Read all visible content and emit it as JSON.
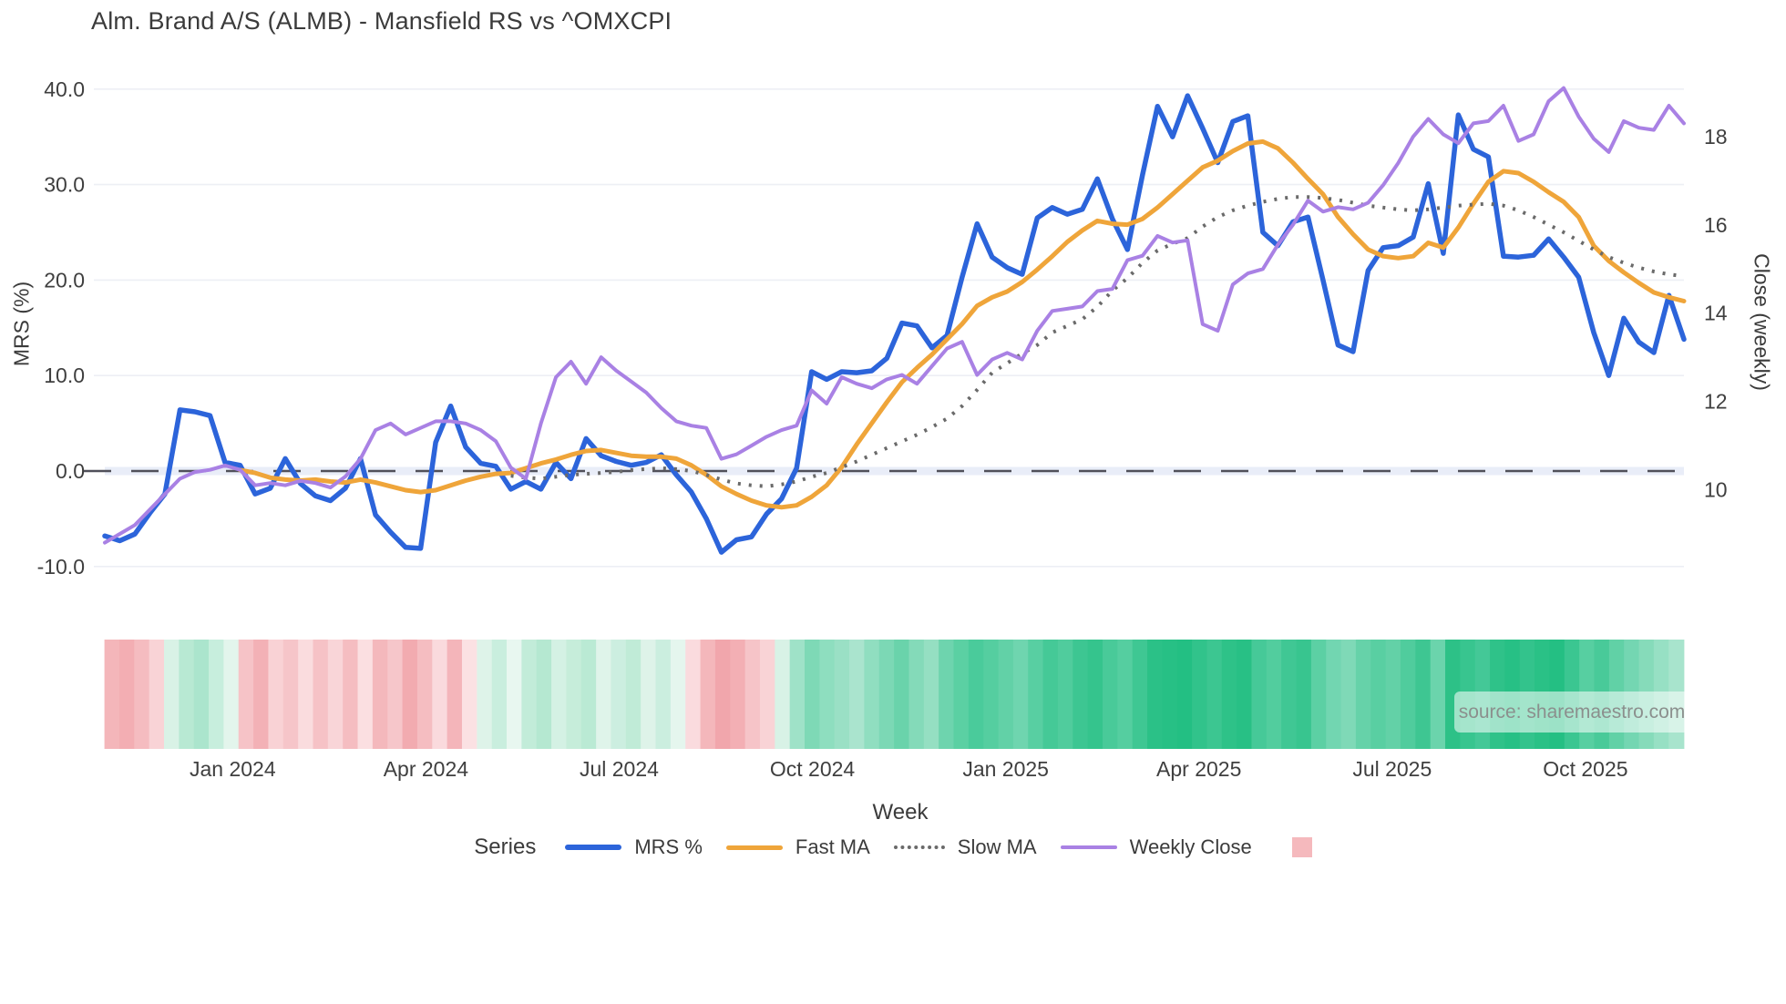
{
  "title": "Alm. Brand A/S (ALMB) - Mansfield RS vs ^OMXCPI",
  "source_text": "source: sharemaestro.com",
  "axes": {
    "left": {
      "title": "MRS (%)",
      "tick_labels": [
        "40.0",
        "30.0",
        "20.0",
        "10.0",
        "0.0",
        "-10.0"
      ],
      "tick_values": [
        40,
        30,
        20,
        10,
        0,
        -10
      ]
    },
    "right": {
      "title": "Close (weekly)",
      "tick_labels": [
        "18",
        "16",
        "14",
        "12",
        "10"
      ],
      "tick_values": [
        18,
        16,
        14,
        12,
        10
      ]
    },
    "x": {
      "title": "Week",
      "tick_labels": [
        "Jan 2024",
        "Apr 2024",
        "Jul 2024",
        "Oct 2024",
        "Jan 2025",
        "Apr 2025",
        "Jul 2025",
        "Oct 2025"
      ]
    }
  },
  "legend": {
    "title": "Series",
    "items": [
      {
        "label": "MRS %",
        "color": "#2c64da",
        "style": "solid",
        "width": 6
      },
      {
        "label": "Fast MA",
        "color": "#efa53a",
        "style": "solid",
        "width": 5
      },
      {
        "label": "Slow MA",
        "color": "#6a6a6a",
        "style": "dotted",
        "width": 4
      },
      {
        "label": "Weekly Close",
        "color": "#a981e4",
        "style": "solid",
        "width": 4
      }
    ],
    "heat_swatch_color": "#f5b9bd"
  },
  "colors": {
    "grid": "#edeff5",
    "zero_line": "#50505a",
    "zero_band": "#e9edf8",
    "tick_text": "#3f3f3f",
    "background": "#ffffff"
  },
  "chart_data": {
    "type": "line",
    "title": "Alm. Brand A/S (ALMB) - Mansfield RS vs ^OMXCPI",
    "xlabel": "Week",
    "ylabel_left": "MRS (%)",
    "ylabel_right": "Close (weekly)",
    "ylim_left": [
      -10,
      40
    ],
    "ylim_right": [
      10,
      18
    ],
    "n_points": 106,
    "x_range_note": "weekly points from Nov 2023 to Nov 2025",
    "x_tick_labels": [
      "Jan 2024",
      "Apr 2024",
      "Jul 2024",
      "Oct 2024",
      "Jan 2025",
      "Apr 2025",
      "Jul 2025",
      "Oct 2025"
    ],
    "x_tick_week_index": [
      8.5,
      21.35,
      34.2,
      47.05,
      59.9,
      72.75,
      85.6,
      98.45
    ],
    "grid": true,
    "legend_position": "bottom",
    "series": [
      {
        "name": "MRS %",
        "axis": "left",
        "color": "#2c64da",
        "style": "solid",
        "stroke_width": 5.5,
        "values": [
          -6.8,
          -7.3,
          -6.6,
          -4.4,
          -2.4,
          6.4,
          6.2,
          5.8,
          0.9,
          0.6,
          -2.4,
          -1.8,
          1.3,
          -1.3,
          -2.6,
          -3.1,
          -1.8,
          1.3,
          -4.6,
          -6.4,
          -8.0,
          -8.1,
          3.0,
          6.8,
          2.5,
          0.8,
          0.5,
          -1.9,
          -1.1,
          -1.9,
          0.9,
          -0.8,
          3.4,
          1.6,
          1.0,
          0.6,
          0.9,
          1.7,
          -0.4,
          -2.2,
          -5.0,
          -8.5,
          -7.2,
          -6.9,
          -4.5,
          -2.9,
          0.3,
          10.4,
          9.6,
          10.4,
          10.3,
          10.5,
          11.8,
          15.5,
          15.2,
          12.9,
          14.2,
          20.3,
          25.9,
          22.4,
          21.3,
          20.6,
          26.5,
          27.6,
          26.9,
          27.4,
          30.6,
          26.4,
          23.2,
          31.0,
          38.2,
          35.0,
          39.3,
          35.9,
          32.3,
          36.6,
          37.2,
          25.0,
          23.6,
          26.1,
          26.6,
          20.0,
          13.2,
          12.5,
          21.0,
          23.4,
          23.6,
          24.5,
          30.1,
          22.8,
          37.3,
          33.7,
          32.9,
          22.5,
          22.4,
          22.6,
          24.3,
          22.4,
          20.3,
          14.5,
          10.0,
          16.0,
          13.5,
          12.4,
          18.4,
          13.8
        ]
      },
      {
        "name": "Fast MA",
        "axis": "left",
        "color": "#efa53a",
        "style": "solid",
        "stroke_width": 5,
        "values": [
          null,
          null,
          null,
          null,
          null,
          null,
          null,
          null,
          null,
          0.1,
          -0.2,
          -0.7,
          -0.9,
          -1.0,
          -0.9,
          -1.1,
          -1.2,
          -0.9,
          -1.2,
          -1.6,
          -2.0,
          -2.2,
          -2.0,
          -1.5,
          -1.0,
          -0.6,
          -0.3,
          -0.2,
          0.3,
          0.8,
          1.2,
          1.7,
          2.1,
          2.2,
          1.9,
          1.6,
          1.5,
          1.5,
          1.3,
          0.6,
          -0.4,
          -1.6,
          -2.4,
          -3.1,
          -3.6,
          -3.8,
          -3.6,
          -2.7,
          -1.5,
          0.4,
          2.8,
          5.0,
          7.2,
          9.3,
          10.8,
          12.2,
          13.8,
          15.4,
          17.3,
          18.2,
          18.8,
          19.8,
          21.1,
          22.5,
          24.0,
          25.2,
          26.2,
          25.9,
          25.8,
          26.4,
          27.6,
          29.0,
          30.4,
          31.8,
          32.5,
          33.5,
          34.3,
          34.5,
          33.8,
          32.3,
          30.6,
          29.0,
          26.6,
          24.8,
          23.2,
          22.5,
          22.3,
          22.5,
          23.9,
          23.4,
          25.5,
          28.0,
          30.3,
          31.4,
          31.2,
          30.3,
          29.2,
          28.2,
          26.6,
          23.6,
          22.0,
          20.8,
          19.7,
          18.7,
          18.2,
          17.8
        ]
      },
      {
        "name": "Slow MA",
        "axis": "left",
        "color": "#6a6a6a",
        "style": "dotted",
        "stroke_width": 4,
        "values": [
          null,
          null,
          null,
          null,
          null,
          null,
          null,
          null,
          null,
          null,
          null,
          null,
          null,
          null,
          null,
          null,
          null,
          null,
          null,
          null,
          null,
          null,
          null,
          null,
          null,
          null,
          null,
          -0.5,
          -0.7,
          -0.8,
          -0.6,
          -0.4,
          -0.3,
          -0.2,
          -0.1,
          0.1,
          0.2,
          0.3,
          0.2,
          0.0,
          -0.4,
          -0.9,
          -1.3,
          -1.5,
          -1.6,
          -1.4,
          -1.1,
          -0.6,
          -0.2,
          0.4,
          1.0,
          1.7,
          2.4,
          3.1,
          3.8,
          4.6,
          5.5,
          6.8,
          8.5,
          10.3,
          11.3,
          12.3,
          13.2,
          14.5,
          15.2,
          15.9,
          17.2,
          18.9,
          20.2,
          21.8,
          23.1,
          23.8,
          24.4,
          25.6,
          26.6,
          27.3,
          27.8,
          28.2,
          28.5,
          28.7,
          28.7,
          28.6,
          28.4,
          28.1,
          27.8,
          27.6,
          27.4,
          27.3,
          27.4,
          27.6,
          27.8,
          27.9,
          28.0,
          27.8,
          27.3,
          26.6,
          25.8,
          25.0,
          24.1,
          23.2,
          22.4,
          21.8,
          21.3,
          20.9,
          20.6,
          20.4
        ]
      },
      {
        "name": "Weekly Close",
        "axis": "right",
        "color": "#a981e4",
        "style": "solid",
        "stroke_width": 4,
        "values": [
          8.8,
          9.0,
          9.2,
          9.55,
          9.9,
          10.25,
          10.4,
          10.45,
          10.55,
          10.45,
          10.1,
          10.15,
          10.1,
          10.2,
          10.15,
          10.05,
          10.3,
          10.7,
          11.35,
          11.5,
          11.25,
          11.4,
          11.55,
          11.55,
          11.5,
          11.35,
          11.1,
          10.5,
          10.25,
          11.5,
          12.55,
          12.9,
          12.4,
          13.0,
          12.7,
          12.45,
          12.2,
          11.85,
          11.55,
          11.45,
          11.4,
          10.7,
          10.8,
          11.0,
          11.2,
          11.35,
          11.45,
          12.25,
          11.95,
          12.55,
          12.4,
          12.3,
          12.5,
          12.6,
          12.4,
          12.8,
          13.2,
          13.35,
          12.6,
          12.95,
          13.1,
          12.95,
          13.6,
          14.05,
          14.1,
          14.15,
          14.5,
          14.55,
          15.2,
          15.3,
          15.75,
          15.6,
          15.65,
          13.75,
          13.6,
          14.65,
          14.9,
          15.0,
          15.55,
          16.0,
          16.55,
          16.3,
          16.4,
          16.35,
          16.5,
          16.9,
          17.4,
          18.0,
          18.4,
          18.05,
          17.85,
          18.3,
          18.35,
          18.7,
          17.9,
          18.05,
          18.8,
          19.1,
          18.45,
          17.95,
          17.65,
          18.35,
          18.2,
          18.15,
          18.7,
          18.3
        ]
      }
    ],
    "zero_line": {
      "value": 0,
      "axis": "left",
      "style": "dashed",
      "color": "#50505a"
    },
    "heatmap_strip": {
      "position": "below_plot",
      "colors": [
        "#f4b6ba",
        "#f3aeb3",
        "#f5bcc0",
        "#f9d3d6",
        "#d9f2e6",
        "#b8e9d3",
        "#abe5cd",
        "#c7eedd",
        "#e3f5ec",
        "#f6c3c7",
        "#f3b1b6",
        "#f9d2d5",
        "#f6c5c9",
        "#fadcde",
        "#f6c2c6",
        "#f9d5d8",
        "#f5bdc1",
        "#fbdfe1",
        "#f4b8bc",
        "#f6c6ca",
        "#f2abb0",
        "#f5bdc1",
        "#fadadd",
        "#f4b5ba",
        "#fbe1e3",
        "#def3e9",
        "#c9eede",
        "#e8f7f0",
        "#c2ecd9",
        "#b5e8d1",
        "#d4f1e4",
        "#c6edda",
        "#baead4",
        "#dff4ea",
        "#cceee0",
        "#c0ebd7",
        "#def3e9",
        "#cbeedf",
        "#e5f6ee",
        "#fadbde",
        "#f4b7bb",
        "#f1a6ac",
        "#f3afb4",
        "#f6c4c8",
        "#f9d3d6",
        "#d8f2e6",
        "#9fe2c8",
        "#7ed9b6",
        "#8edebf",
        "#9ae0c5",
        "#aae4ce",
        "#90dec0",
        "#7cd8b5",
        "#6ad3ab",
        "#84dab9",
        "#95dfc2",
        "#6ed4ae",
        "#5bd0a3",
        "#4acb9b",
        "#55cea0",
        "#62d1a7",
        "#6fd5af",
        "#58cfa2",
        "#45c997",
        "#50cc9d",
        "#3dc692",
        "#35c48d",
        "#49ca99",
        "#55cea0",
        "#3fc793",
        "#2bc187",
        "#27c085",
        "#23bf83",
        "#31c38b",
        "#3cc691",
        "#2ec288",
        "#28c085",
        "#46c998",
        "#52cd9e",
        "#40c794",
        "#38c58f",
        "#5cd0a4",
        "#72d6b1",
        "#7fd9b7",
        "#66d2a9",
        "#59cfa2",
        "#63d1a7",
        "#50cc9d",
        "#3ec692",
        "#6bd4ac",
        "#2dc187",
        "#38c58f",
        "#44c897",
        "#2fc289",
        "#27c085",
        "#33c38c",
        "#2ac186",
        "#24bf83",
        "#3bc691",
        "#57cfa1",
        "#49ca99",
        "#61d1a6",
        "#74d6b2",
        "#86dbba",
        "#97e0c4",
        "#a8e4cd"
      ]
    }
  }
}
